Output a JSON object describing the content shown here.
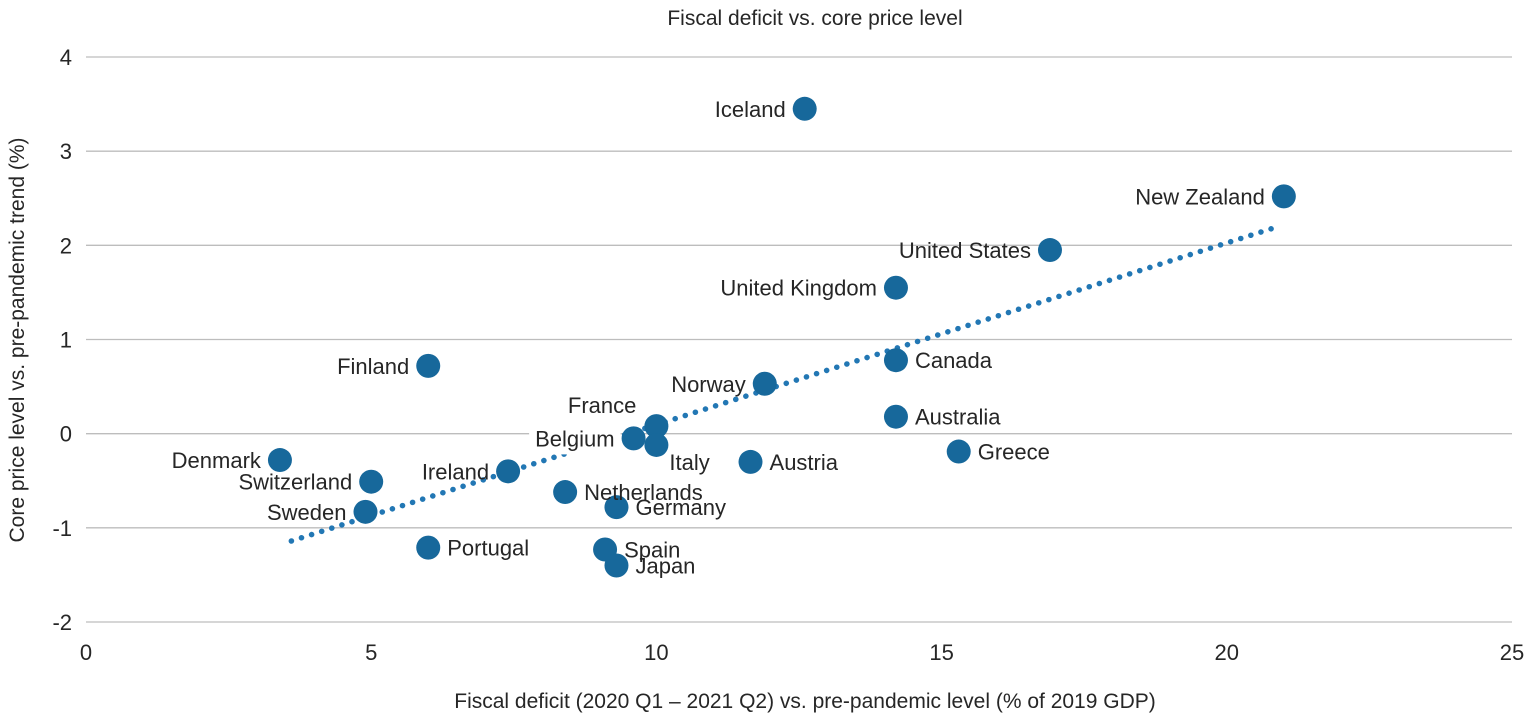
{
  "chart_data": {
    "type": "scatter",
    "title": "Fiscal deficit vs. core price level",
    "xlabel": "Fiscal deficit (2020 Q1 – 2021 Q2) vs. pre-pandemic level (% of 2019 GDP)",
    "ylabel": "Core price level vs. pre-pandemic trend (%)",
    "xlim": [
      0,
      25
    ],
    "ylim": [
      -2,
      4
    ],
    "xticks": [
      0,
      5,
      10,
      15,
      20,
      25
    ],
    "yticks": [
      4,
      3,
      2,
      1,
      0,
      -1,
      -2
    ],
    "grid": "horizontal",
    "grid_color": "#bdbdbd",
    "text_color": "#262626",
    "dot_color": "#17689b",
    "dot_radius": 12,
    "trend": {
      "style": "dotted",
      "color": "#2277b4",
      "x1": 3.6,
      "y1": -1.14,
      "x2": 20.8,
      "y2": 2.18
    },
    "points": [
      {
        "label": "Iceland",
        "x": 12.6,
        "y": 3.45,
        "align": "left"
      },
      {
        "label": "New Zealand",
        "x": 21.0,
        "y": 2.52,
        "align": "left"
      },
      {
        "label": "United States",
        "x": 16.9,
        "y": 1.95,
        "align": "left"
      },
      {
        "label": "United Kingdom",
        "x": 14.2,
        "y": 1.55,
        "align": "left"
      },
      {
        "label": "Canada",
        "x": 14.2,
        "y": 0.78,
        "align": "right"
      },
      {
        "label": "Finland",
        "x": 6.0,
        "y": 0.72,
        "align": "left"
      },
      {
        "label": "Norway",
        "x": 11.9,
        "y": 0.53,
        "align": "left"
      },
      {
        "label": "Australia",
        "x": 14.2,
        "y": 0.18,
        "align": "right"
      },
      {
        "label": "France",
        "x": 10.0,
        "y": 0.08,
        "align": "above-left"
      },
      {
        "label": "Belgium",
        "x": 9.6,
        "y": -0.05,
        "align": "left",
        "highlight": true
      },
      {
        "label": "Italy",
        "x": 10.0,
        "y": -0.12,
        "align": "below-right"
      },
      {
        "label": "Austria",
        "x": 11.65,
        "y": -0.3,
        "align": "right"
      },
      {
        "label": "Greece",
        "x": 15.3,
        "y": -0.19,
        "align": "right"
      },
      {
        "label": "Denmark",
        "x": 3.4,
        "y": -0.28,
        "align": "left"
      },
      {
        "label": "Ireland",
        "x": 7.4,
        "y": -0.4,
        "align": "left"
      },
      {
        "label": "Switzerland",
        "x": 5.0,
        "y": -0.51,
        "align": "left"
      },
      {
        "label": "Netherlands",
        "x": 8.4,
        "y": -0.62,
        "align": "right"
      },
      {
        "label": "Sweden",
        "x": 4.9,
        "y": -0.83,
        "align": "left"
      },
      {
        "label": "Germany",
        "x": 9.3,
        "y": -0.78,
        "align": "right"
      },
      {
        "label": "Portugal",
        "x": 6.0,
        "y": -1.21,
        "align": "right"
      },
      {
        "label": "Spain",
        "x": 9.1,
        "y": -1.23,
        "align": "right"
      },
      {
        "label": "Japan",
        "x": 9.3,
        "y": -1.4,
        "align": "right"
      }
    ]
  }
}
